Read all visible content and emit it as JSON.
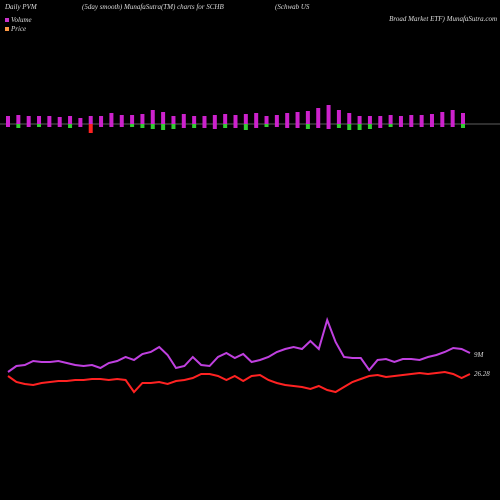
{
  "chart_data": {
    "type": "pvm",
    "title": "Daily PVM",
    "subtitle": "(5day smooth) MunafaSutra(TM) charts for SCHB",
    "name_line1": "(Schwab US",
    "name_line2": "Broad Market ETF) MunafaSutra.com",
    "legend": [
      "Volume",
      "Price"
    ],
    "legend_colors": [
      "#cc33cc",
      "#ff9944"
    ],
    "volume_label": "9M",
    "price_label": "26.28",
    "bars": {
      "up": [
        8,
        9,
        8,
        8,
        8,
        7,
        8,
        6,
        8,
        8,
        11,
        9,
        9,
        10,
        14,
        12,
        8,
        10,
        8,
        8,
        9,
        10,
        9,
        10,
        11,
        8,
        9,
        11,
        12,
        13,
        16,
        19,
        14,
        11,
        8,
        8,
        8,
        9,
        8,
        9,
        9,
        10,
        12,
        14,
        11
      ],
      "down": [
        3,
        4,
        3,
        3,
        3,
        3,
        4,
        3,
        9,
        3,
        3,
        3,
        3,
        4,
        5,
        6,
        5,
        4,
        4,
        4,
        5,
        4,
        4,
        6,
        4,
        3,
        3,
        4,
        4,
        5,
        4,
        5,
        4,
        6,
        6,
        5,
        4,
        3,
        3,
        3,
        3,
        3,
        3,
        3,
        4
      ],
      "down_colors": [
        "#cc22cc",
        "#33cc33",
        "#cc22cc",
        "#33cc33",
        "#cc22cc",
        "#cc22cc",
        "#33cc33",
        "#cc22cc",
        "#ff2222",
        "#cc22cc",
        "#cc22cc",
        "#cc22cc",
        "#33cc33",
        "#33cc33",
        "#33cc33",
        "#33cc33",
        "#33cc33",
        "#cc22cc",
        "#33cc33",
        "#cc22cc",
        "#cc22cc",
        "#33cc33",
        "#cc22cc",
        "#33cc33",
        "#cc22cc",
        "#33cc33",
        "#cc22cc",
        "#cc22cc",
        "#cc22cc",
        "#33cc33",
        "#cc22cc",
        "#cc22cc",
        "#33cc33",
        "#33cc33",
        "#33cc33",
        "#33cc33",
        "#cc22cc",
        "#33cc33",
        "#cc22cc",
        "#cc22cc",
        "#cc22cc",
        "#cc22cc",
        "#cc22cc",
        "#cc22cc",
        "#33cc33"
      ],
      "up_color": "#cc22cc",
      "ylim": [
        -20,
        20
      ]
    },
    "series": [
      {
        "name": "Volume",
        "color": "#c040e0",
        "values": [
          28,
          34,
          35,
          39,
          38,
          38,
          39,
          37,
          35,
          34,
          35,
          32,
          37,
          39,
          43,
          40,
          46,
          48,
          53,
          45,
          32,
          34,
          43,
          35,
          34,
          43,
          47,
          42,
          46,
          38,
          40,
          43,
          48,
          51,
          53,
          51,
          59,
          51,
          80,
          58,
          43,
          42,
          42,
          30,
          40,
          41,
          38,
          41,
          41,
          40,
          43,
          45,
          48,
          52,
          51,
          47
        ]
      },
      {
        "name": "Price",
        "color": "#ff2222",
        "values": [
          24,
          18,
          16,
          15,
          17,
          18,
          19,
          19,
          20,
          20,
          21,
          21,
          20,
          21,
          20,
          8,
          17,
          17,
          18,
          16,
          19,
          20,
          22,
          26,
          26,
          24,
          20,
          24,
          19,
          24,
          25,
          20,
          17,
          15,
          14,
          13,
          11,
          14,
          10,
          8,
          13,
          18,
          21,
          24,
          25,
          23,
          24,
          25,
          26,
          27,
          26,
          27,
          28,
          26,
          22,
          26
        ]
      }
    ],
    "ylim": [
      0,
      100
    ]
  }
}
